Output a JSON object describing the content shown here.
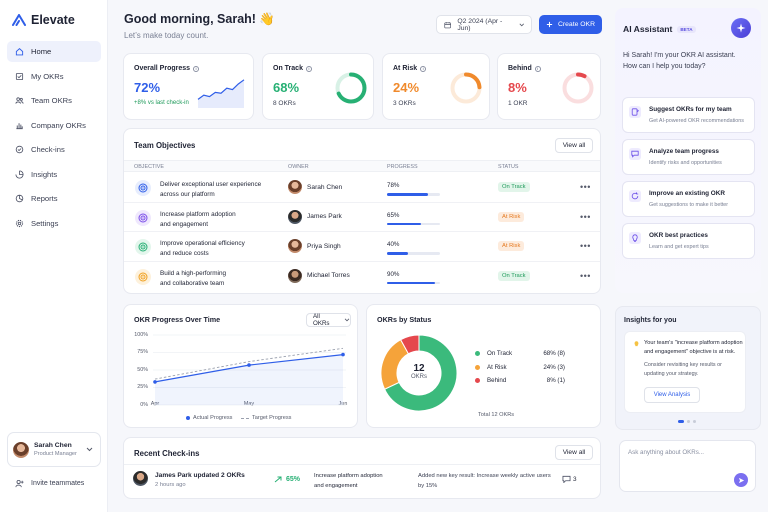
{
  "app": {
    "name": "Elevate",
    "brand_color": "#2f5ee8"
  },
  "sidebar": {
    "items": [
      {
        "label": "Home",
        "icon": "home-icon",
        "active": true
      },
      {
        "label": "My OKRs",
        "icon": "checklist-icon"
      },
      {
        "label": "Team OKRs",
        "icon": "team-icon"
      },
      {
        "label": "Company OKRs",
        "icon": "bar-chart-icon"
      },
      {
        "label": "Check-ins",
        "icon": "check-circle-icon"
      },
      {
        "label": "Insights",
        "icon": "insights-icon"
      },
      {
        "label": "Reports",
        "icon": "reports-icon"
      },
      {
        "label": "Settings",
        "icon": "gear-icon"
      }
    ],
    "user": {
      "name": "Sarah Chen",
      "role": "Product Manager"
    },
    "invite_label": "Invite teammates"
  },
  "header": {
    "greeting": "Good morning, Sarah! 👋",
    "subtitle": "Let’s make today count.",
    "period": "Q2 2024 (Apr - Jun)",
    "create_label": "Create OKR"
  },
  "kpis": {
    "overall": {
      "title": "Overall Progress",
      "value": "72%",
      "sub": "+8% vs last check-in",
      "spark": [
        0.2,
        0.35,
        0.3,
        0.45,
        0.42,
        0.6,
        0.55,
        0.75,
        0.9
      ]
    },
    "on_track": {
      "title": "On Track",
      "value": "68%",
      "sub": "8 OKRs",
      "fraction": 0.68,
      "color": "#27b074"
    },
    "at_risk": {
      "title": "At Risk",
      "value": "24%",
      "sub": "3 OKRs",
      "fraction": 0.24,
      "color": "#f08a2c"
    },
    "behind": {
      "title": "Behind",
      "value": "8%",
      "sub": "1 OKR",
      "fraction": 0.08,
      "color": "#e5484d"
    }
  },
  "objectives": {
    "title": "Team Objectives",
    "view_all": "View all",
    "columns": [
      "OBJECTIVE",
      "OWNER",
      "PROGRESS",
      "STATUS"
    ],
    "rows": [
      {
        "line1": "Deliver exceptional user experience",
        "line2": "across our platform",
        "owner": "Sarah Chen",
        "progress": "78%",
        "fraction": 0.78,
        "status": "On Track"
      },
      {
        "line1": "Increase platform adoption",
        "line2": "and engagement",
        "owner": "James Park",
        "progress": "65%",
        "fraction": 0.65,
        "status": "At Risk"
      },
      {
        "line1": "Improve operational efficiency",
        "line2": "and reduce costs",
        "owner": "Priya Singh",
        "progress": "40%",
        "fraction": 0.4,
        "status": "At Risk"
      },
      {
        "line1": "Build a high-performing",
        "line2": "and collaborative team",
        "owner": "Michael Torres",
        "progress": "90%",
        "fraction": 0.9,
        "status": "On Track"
      }
    ]
  },
  "progress_chart": {
    "title": "OKR Progress Over Time",
    "filter": "All OKRs",
    "legend_actual": "Actual Progress",
    "legend_target": "Target Progress"
  },
  "status_chart": {
    "title": "OKRs by Status",
    "center_value": "12",
    "center_label": "OKRs",
    "total": "Total 12 OKRs",
    "items": [
      {
        "label": "On Track",
        "value": "68% (8)"
      },
      {
        "label": "At Risk",
        "value": "24% (3)"
      },
      {
        "label": "Behind",
        "value": "8% (1)"
      }
    ]
  },
  "chart_data": [
    {
      "type": "line",
      "title": "OKR Progress Over Time",
      "x": [
        "Apr",
        "May",
        "Jun"
      ],
      "yticks": [
        "100%",
        "75%",
        "50%",
        "25%",
        "0%"
      ],
      "ylim": [
        0,
        100
      ],
      "series": [
        {
          "name": "Actual Progress",
          "x": [
            0,
            1,
            2
          ],
          "values": [
            33,
            57,
            72
          ],
          "color": "#2f5ee8",
          "style": "solid"
        },
        {
          "name": "Target Progress",
          "x": [
            0,
            1,
            2
          ],
          "values": [
            37,
            62,
            81
          ],
          "color": "#9aa0ae",
          "style": "dashed"
        }
      ],
      "grid": true,
      "legend": "bottom"
    },
    {
      "type": "pie",
      "title": "OKRs by Status",
      "categories": [
        "On Track",
        "At Risk",
        "Behind"
      ],
      "values": [
        68,
        24,
        8
      ],
      "counts": [
        8,
        3,
        1
      ],
      "colors": [
        "#3bba7c",
        "#f5a33a",
        "#e5484d"
      ]
    }
  ],
  "checkins": {
    "title": "Recent Check-ins",
    "view_all": "View all",
    "item": {
      "who": "James Park updated 2 OKRs",
      "when": "2 hours ago",
      "change": "65%",
      "objective_l1": "Increase platform adoption",
      "objective_l2": "and engagement",
      "note_l1": "Added new key result: Increase weekly active users",
      "note_l2": "by 15%",
      "comments": "3"
    }
  },
  "assistant": {
    "title": "AI Assistant",
    "badge": "BETA",
    "greeting_l1": "Hi Sarah! I'm your OKR AI assistant.",
    "greeting_l2": "How can I help you today?",
    "suggestions": [
      {
        "title": "Suggest OKRs for my team",
        "desc": "Get AI-powered OKR recommendations",
        "icon": "sparkle-doc-icon"
      },
      {
        "title": "Analyze team progress",
        "desc": "Identify risks and opportunities",
        "icon": "chat-analyze-icon"
      },
      {
        "title": "Improve an existing OKR",
        "desc": "Get suggestions to make it better",
        "icon": "refresh-icon"
      },
      {
        "title": "OKR best practices",
        "desc": "Learn and get expert tips",
        "icon": "lightbulb-icon"
      }
    ],
    "insights_title": "Insights for you",
    "insight_l1": "Your team's \"increase platform adoption",
    "insight_l2": "and engagement\" objective is at risk.",
    "insight_l3": "Consider revisiting key results or",
    "insight_l4": "updating your strategy.",
    "insight_btn": "View Analysis",
    "ask_placeholder": "Ask anything about OKRs..."
  }
}
